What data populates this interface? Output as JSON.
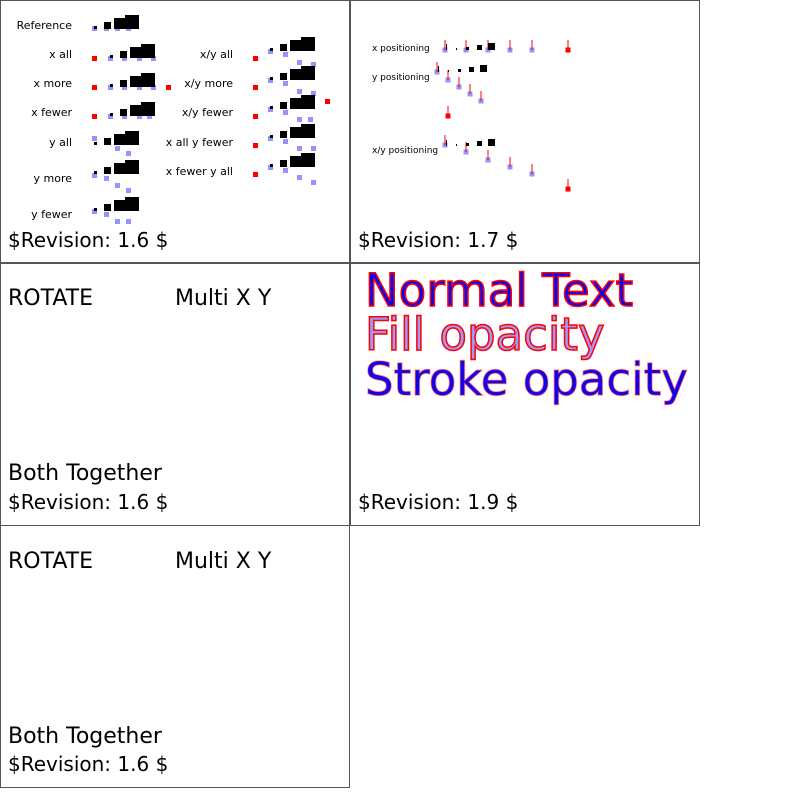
{
  "panels": [
    {
      "labels_left": [
        "Reference",
        "x all",
        "x more",
        "x fewer",
        "y all",
        "y more",
        "y fewer"
      ],
      "labels_right": [
        "x/y all",
        "x/y more",
        "x/y fewer",
        "x all y fewer",
        "x fewer y all"
      ],
      "revision": "$Revision: 1.6 $"
    },
    {
      "labels": [
        "x positioning",
        "y positioning",
        "x/y positioning"
      ],
      "revision": "$Revision: 1.7 $"
    },
    {
      "rotate": "ROTATE",
      "multi": "Multi X Y",
      "both": "Both Together",
      "revision": "$Revision: 1.6 $"
    },
    {
      "normal": "Normal Text",
      "fill_opacity": "Fill opacity",
      "stroke_opacity": "Stroke opacity",
      "revision": "$Revision: 1.9 $"
    },
    {
      "rotate": "ROTATE",
      "multi": "Multi X Y",
      "both": "Both Together",
      "revision": "$Revision: 1.6 $"
    }
  ],
  "colors": {
    "marker_red": "#ff0000",
    "marker_blue": "#8888ff",
    "text_fill": "#0000ff",
    "text_stroke": "#ff0000"
  }
}
